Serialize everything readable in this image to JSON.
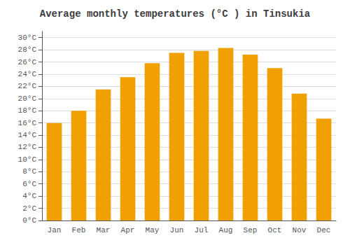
{
  "chart_data": {
    "type": "bar",
    "title": "Average monthly temperatures (°C ) in Tinsukia",
    "categories": [
      "Jan",
      "Feb",
      "Mar",
      "Apr",
      "May",
      "Jun",
      "Jul",
      "Aug",
      "Sep",
      "Oct",
      "Nov",
      "Dec"
    ],
    "values": [
      16.0,
      18.0,
      21.5,
      23.5,
      25.8,
      27.5,
      27.8,
      28.3,
      27.2,
      25.0,
      20.8,
      16.7
    ],
    "color": "#F0A000",
    "ylim": [
      0,
      31
    ],
    "yticks": [
      {
        "value": 0,
        "label": "0°C"
      },
      {
        "value": 2,
        "label": "2°C"
      },
      {
        "value": 4,
        "label": "4°C"
      },
      {
        "value": 6,
        "label": "6°C"
      },
      {
        "value": 8,
        "label": "8°C"
      },
      {
        "value": 10,
        "label": "10°C"
      },
      {
        "value": 12,
        "label": "12°C"
      },
      {
        "value": 14,
        "label": "14°C"
      },
      {
        "value": 16,
        "label": "16°C"
      },
      {
        "value": 18,
        "label": "18°C"
      },
      {
        "value": 20,
        "label": "20°C"
      },
      {
        "value": 22,
        "label": "22°C"
      },
      {
        "value": 24,
        "label": "24°C"
      },
      {
        "value": 26,
        "label": "26°C"
      },
      {
        "value": 28,
        "label": "28°C"
      },
      {
        "value": 30,
        "label": "30°C"
      }
    ],
    "grid": true
  }
}
